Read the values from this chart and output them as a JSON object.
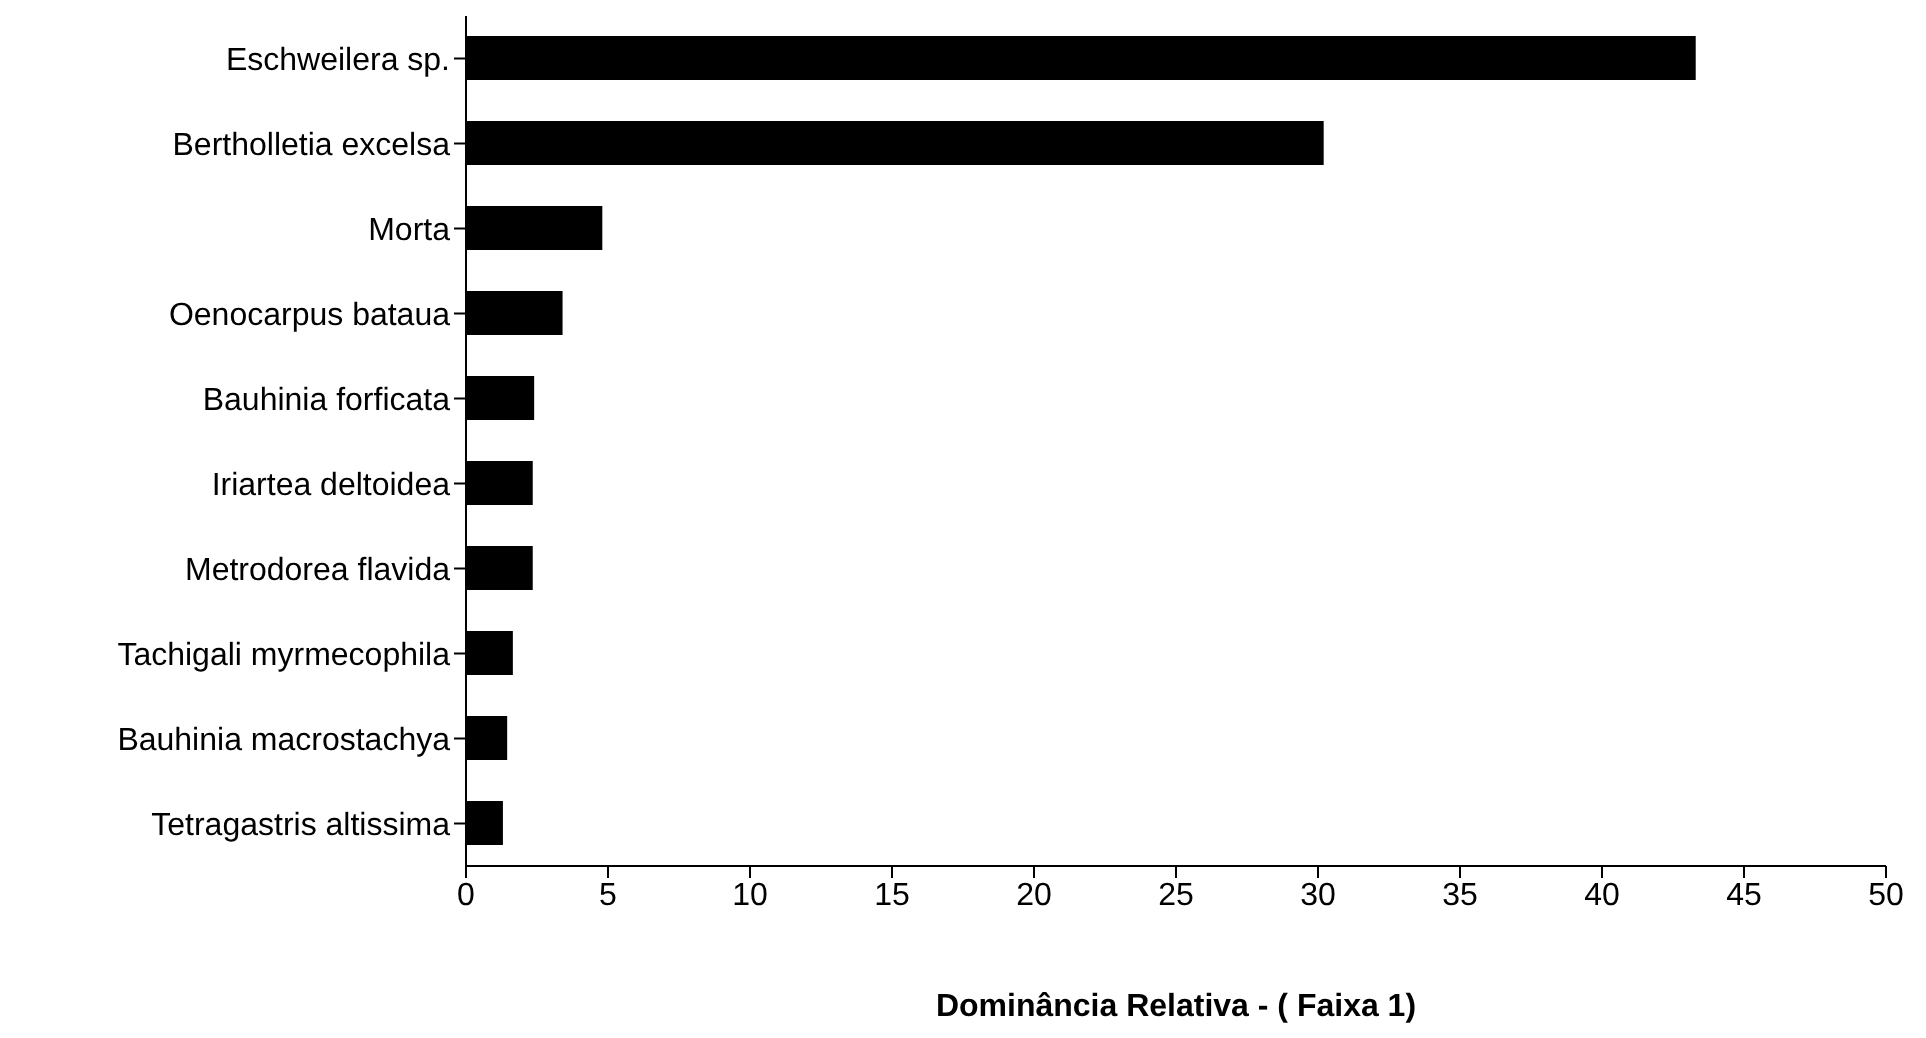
{
  "chart_data": {
    "type": "bar",
    "orientation": "horizontal",
    "xlabel": "Dominância Relativa -  ( Faixa 1)",
    "categories": [
      "Eschweilera sp.",
      "Bertholletia excelsa",
      "Morta",
      "Oenocarpus bataua",
      "Bauhinia forficata",
      "Iriartea deltoidea",
      "Metrodorea flavida",
      "Tachigali myrmecophila",
      "Bauhinia macrostachya",
      "Tetragastris altissima"
    ],
    "values": [
      43.3,
      30.2,
      4.8,
      3.4,
      2.4,
      2.35,
      2.35,
      1.65,
      1.45,
      1.3
    ],
    "color": "#000000",
    "xlim": [
      0,
      50
    ],
    "xticks": [
      0,
      5,
      10,
      15,
      20,
      25,
      30,
      35,
      40,
      45,
      50
    ]
  }
}
